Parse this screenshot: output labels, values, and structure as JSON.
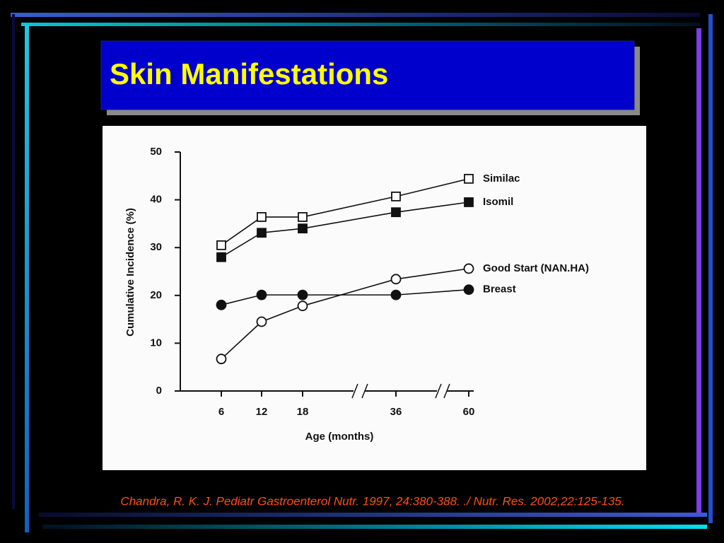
{
  "slide": {
    "title": "Skin Manifestations",
    "citation": "Chandra, R. K.  J. Pediatr Gastroenterol Nutr. 1997, 24:380-388. ./ Nutr. Res. 2002,22:125-135."
  },
  "chart_data": {
    "type": "line",
    "x_label": "Age (months)",
    "y_label": "Cumulative Incidence (%)",
    "categories": [
      "6",
      "12",
      "18",
      "36",
      "60"
    ],
    "series": [
      {
        "name": "Similac",
        "color": "#111111",
        "marker": "open-square",
        "values": [
          30.5,
          36.4,
          36.4,
          40.7,
          44.4
        ]
      },
      {
        "name": "Isomil",
        "color": "#111111",
        "marker": "filled-square",
        "values": [
          28,
          33.1,
          34,
          37.4,
          39.5
        ]
      },
      {
        "name": "Good Start (NAN.HA)",
        "color": "#111111",
        "marker": "open-circle",
        "values": [
          6.7,
          14.5,
          17.8,
          23.4,
          25.6
        ]
      },
      {
        "name": "Breast",
        "color": "#111111",
        "marker": "filled-circle",
        "values": [
          18,
          20.1,
          20.1,
          20.1,
          21.2
        ]
      }
    ],
    "ylim": [
      0,
      50
    ],
    "yticks": [
      0,
      10,
      20,
      30,
      40,
      50
    ],
    "grid": false
  }
}
